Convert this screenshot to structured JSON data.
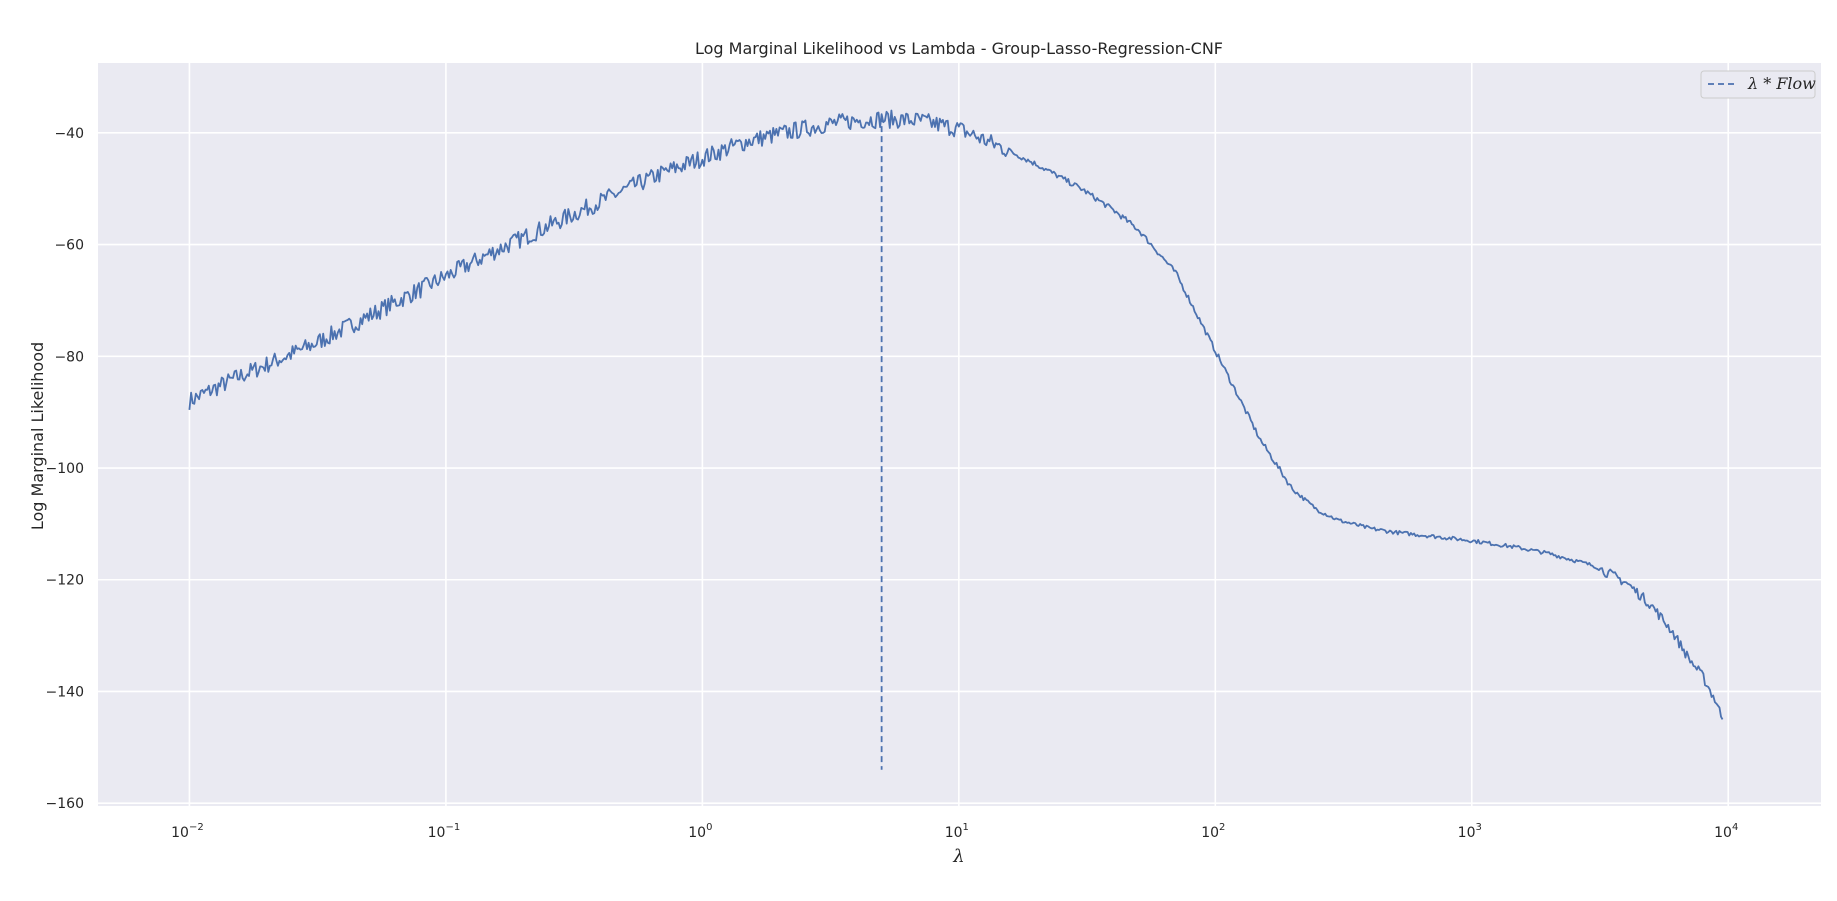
{
  "chart_data": {
    "type": "line",
    "title": "Log Marginal Likelihood vs Lambda - Group-Lasso-Regression-CNF",
    "xlabel": "λ",
    "ylabel": "Log Marginal Likelihood",
    "xscale": "log",
    "xlim": [
      0.0044,
      23000
    ],
    "ylim": [
      -160.5,
      -27.5
    ],
    "grid": true,
    "background_color": "#eaeaf2",
    "grid_color": "#ffffff",
    "line_color": "#4c72b0",
    "x_ticks": [
      {
        "value": 0.01,
        "base": "10",
        "exp": "−2"
      },
      {
        "value": 0.1,
        "base": "10",
        "exp": "−1"
      },
      {
        "value": 1,
        "base": "10",
        "exp": "0"
      },
      {
        "value": 10,
        "base": "10",
        "exp": "1"
      },
      {
        "value": 100,
        "base": "10",
        "exp": "2"
      },
      {
        "value": 1000,
        "base": "10",
        "exp": "3"
      },
      {
        "value": 10000,
        "base": "10",
        "exp": "4"
      }
    ],
    "y_ticks": [
      {
        "value": -40,
        "label": "−40"
      },
      {
        "value": -60,
        "label": "−60"
      },
      {
        "value": -80,
        "label": "−80"
      },
      {
        "value": -100,
        "label": "−100"
      },
      {
        "value": -120,
        "label": "−120"
      },
      {
        "value": -140,
        "label": "−140"
      },
      {
        "value": -160,
        "label": "−160"
      }
    ],
    "legend": {
      "position": "top-right",
      "label": "λ * Flow",
      "style": "dashed"
    },
    "vline": {
      "x": 5.0,
      "y_from": -154,
      "y_to": -37,
      "style": "dashed"
    },
    "series": [
      {
        "x": [
          0.01,
          0.015,
          0.02,
          0.03,
          0.05,
          0.07,
          0.1,
          0.15,
          0.2,
          0.3,
          0.5,
          0.7,
          1.0,
          1.5,
          2.0,
          3.0,
          4.0,
          5.0,
          7.0,
          10,
          15,
          20,
          30,
          40,
          50,
          70,
          100,
          150,
          200,
          250,
          300,
          400,
          500,
          700,
          1000,
          1500,
          2000,
          3000,
          4000,
          5000,
          6000,
          7000,
          8000,
          9000,
          9500
        ],
        "y": [
          -88,
          -84,
          -81.5,
          -78,
          -72.8,
          -69.3,
          -65.7,
          -61.5,
          -58.8,
          -55,
          -50.2,
          -47.2,
          -44.5,
          -41.5,
          -40.2,
          -38.5,
          -37.8,
          -37.5,
          -37.8,
          -39.3,
          -42.8,
          -45.6,
          -50,
          -53.8,
          -57.3,
          -65,
          -79,
          -95,
          -103.8,
          -107.5,
          -109.3,
          -110.8,
          -111.5,
          -112.2,
          -113,
          -114.2,
          -115.3,
          -117.5,
          -120.5,
          -124.5,
          -129,
          -134,
          -137.5,
          -142,
          -145
        ]
      }
    ]
  }
}
